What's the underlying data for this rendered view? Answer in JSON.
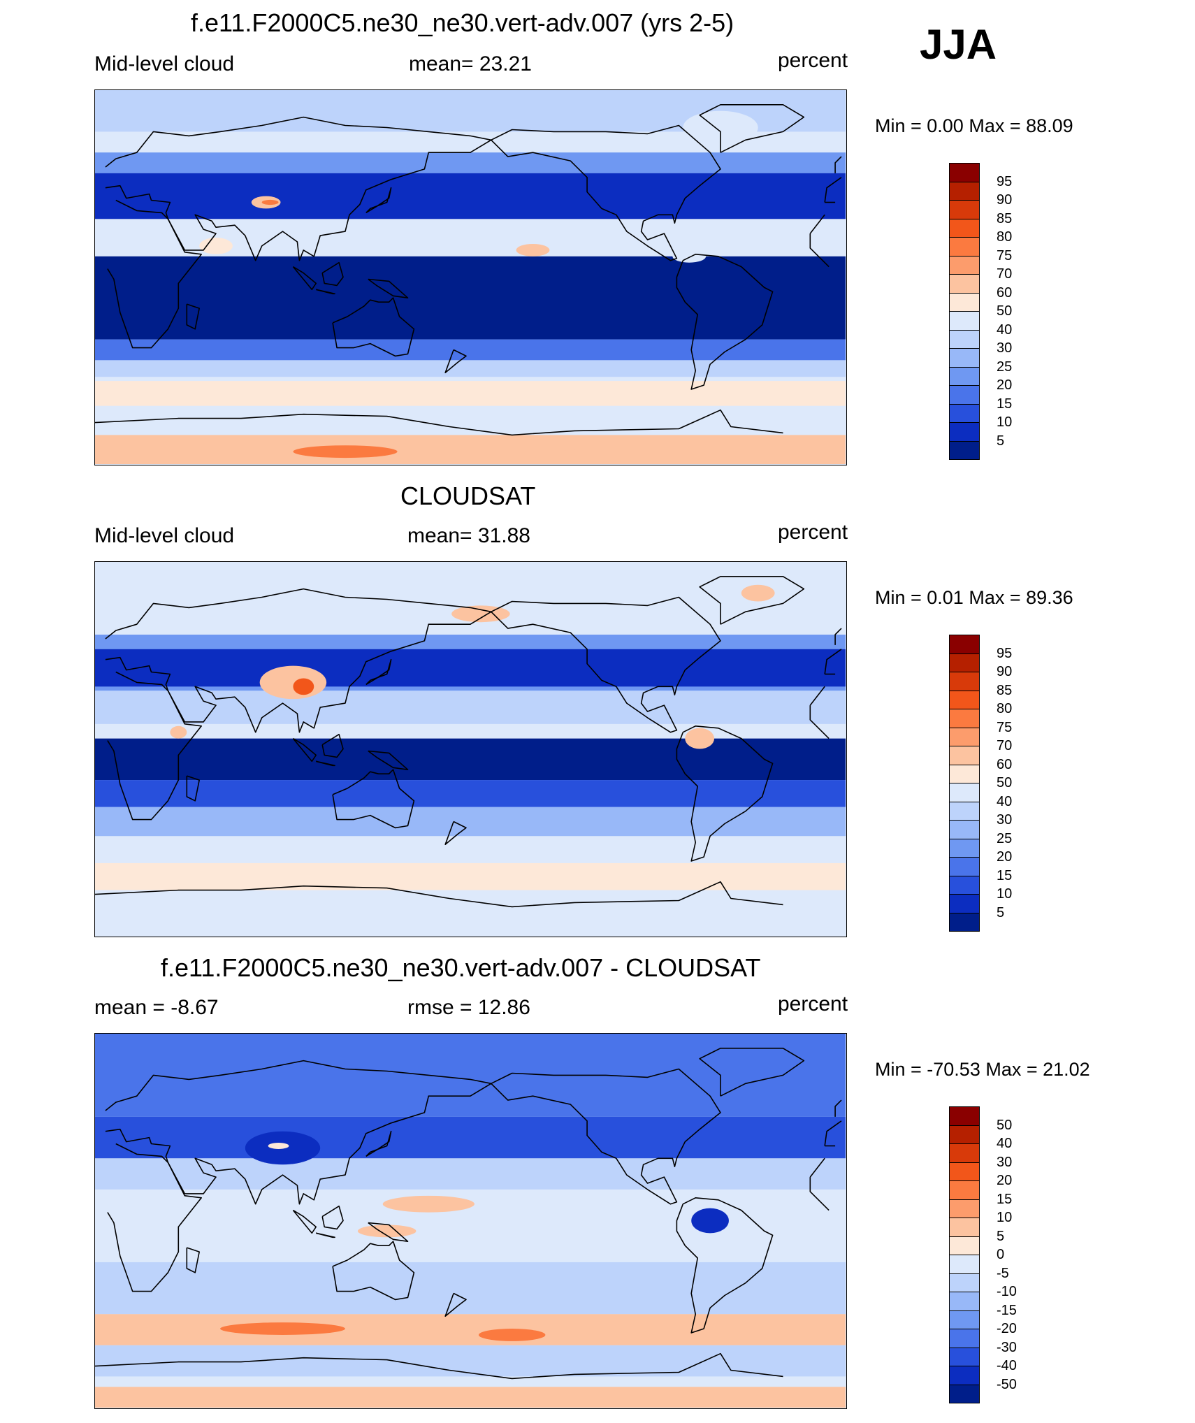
{
  "season": "JJA",
  "panels": [
    {
      "title": "f.e11.F2000C5.ne30_ne30.vert-adv.007 (yrs 2-5)",
      "left": "Mid-level cloud",
      "center": "mean=  23.21",
      "right": "percent",
      "minmax": "Min =   0.00 Max =  88.09",
      "scale": "abs"
    },
    {
      "title": "CLOUDSAT",
      "left": "Mid-level cloud",
      "center": "mean=  31.88",
      "right": "percent",
      "minmax": "Min =   0.01 Max =  89.36",
      "scale": "abs"
    },
    {
      "title": "f.e11.F2000C5.ne30_ne30.vert-adv.007 - CLOUDSAT",
      "left": "mean =  -8.67",
      "center": "rmse =  12.86",
      "right": "percent",
      "minmax": "Min = -70.53 Max =  21.02",
      "scale": "diff"
    }
  ],
  "colorbars": {
    "abs": {
      "labels": [
        "95",
        "90",
        "85",
        "80",
        "75",
        "70",
        "60",
        "50",
        "40",
        "30",
        "25",
        "20",
        "15",
        "10",
        "5"
      ],
      "colors": [
        "#8a0000",
        "#b52000",
        "#d83a0a",
        "#f2561a",
        "#fb7a40",
        "#fc9c6c",
        "#fcc3a0",
        "#fde8d8",
        "#dde9fb",
        "#bdd3fb",
        "#98b8f8",
        "#6f98f2",
        "#4a74ea",
        "#2850dc",
        "#0c2dc0",
        "#001e8a"
      ]
    },
    "diff": {
      "labels": [
        "50",
        "40",
        "30",
        "20",
        "15",
        "10",
        "5",
        "0",
        "-5",
        "-10",
        "-15",
        "-20",
        "-30",
        "-40",
        "-50"
      ],
      "colors": [
        "#8a0000",
        "#b52000",
        "#d83a0a",
        "#f2561a",
        "#fb7a40",
        "#fc9c6c",
        "#fcc3a0",
        "#fde8d8",
        "#dde9fb",
        "#bdd3fb",
        "#98b8f8",
        "#6f98f2",
        "#4a74ea",
        "#2850dc",
        "#0c2dc0",
        "#001e8a"
      ]
    }
  },
  "map_fields": [
    {
      "background": "#dde9fb",
      "bands": [
        {
          "color": "#bdd3fb",
          "lat_top": 90,
          "lat_bottom": 70
        },
        {
          "color": "#6f98f2",
          "lat_top": 60,
          "lat_bottom": 40
        },
        {
          "color": "#0c2dc0",
          "lat_top": 50,
          "lat_bottom": 25
        },
        {
          "color": "#dde9fb",
          "lat_top": 28,
          "lat_bottom": 20
        },
        {
          "color": "#001e8a",
          "lat_top": 10,
          "lat_bottom": -30
        },
        {
          "color": "#4a74ea",
          "lat_top": -30,
          "lat_bottom": -40
        },
        {
          "color": "#bdd3fb",
          "lat_top": -40,
          "lat_bottom": -48
        },
        {
          "color": "#fde8d8",
          "lat_top": -50,
          "lat_bottom": -62
        },
        {
          "color": "#dde9fb",
          "lat_top": -62,
          "lat_bottom": -72
        },
        {
          "color": "#fcc3a0",
          "lat_top": -76,
          "lat_bottom": -90
        }
      ],
      "blobs": [
        {
          "color": "#fcc3a0",
          "lon": 82,
          "lat": 36,
          "rx": 7,
          "ry": 3
        },
        {
          "color": "#fb7a40",
          "lon": 84,
          "lat": 36,
          "rx": 4,
          "ry": 1.2
        },
        {
          "color": "#fde8d8",
          "lon": 58,
          "lat": 15,
          "rx": 8,
          "ry": 4
        },
        {
          "color": "#fcc3a0",
          "lon": 210,
          "lat": 13,
          "rx": 8,
          "ry": 3
        },
        {
          "color": "#dde9fb",
          "lon": 285,
          "lat": 10,
          "rx": 8,
          "ry": 3
        },
        {
          "color": "#dde9fb",
          "lon": 300,
          "lat": 72,
          "rx": 18,
          "ry": 8
        },
        {
          "color": "#fb7a40",
          "lon": 120,
          "lat": -84,
          "rx": 25,
          "ry": 3
        },
        {
          "color": "#fcc3a0",
          "lon": 240,
          "lat": -86,
          "rx": 30,
          "ry": 3
        }
      ]
    },
    {
      "background": "#dde9fb",
      "bands": [
        {
          "color": "#dde9fb",
          "lat_top": 90,
          "lat_bottom": 60
        },
        {
          "color": "#6f98f2",
          "lat_top": 55,
          "lat_bottom": 28
        },
        {
          "color": "#0c2dc0",
          "lat_top": 48,
          "lat_bottom": 30
        },
        {
          "color": "#bdd3fb",
          "lat_top": 28,
          "lat_bottom": 12
        },
        {
          "color": "#001e8a",
          "lat_top": 5,
          "lat_bottom": -15
        },
        {
          "color": "#2850dc",
          "lat_top": -15,
          "lat_bottom": -28
        },
        {
          "color": "#98b8f8",
          "lat_top": -28,
          "lat_bottom": -42
        },
        {
          "color": "#dde9fb",
          "lat_top": -42,
          "lat_bottom": -55
        },
        {
          "color": "#fde8d8",
          "lat_top": -55,
          "lat_bottom": -68
        },
        {
          "color": "#dde9fb",
          "lat_top": -68,
          "lat_bottom": -80
        }
      ],
      "blobs": [
        {
          "color": "#fcc3a0",
          "lon": 95,
          "lat": 32,
          "rx": 16,
          "ry": 8
        },
        {
          "color": "#f2561a",
          "lon": 100,
          "lat": 30,
          "rx": 5,
          "ry": 4
        },
        {
          "color": "#fcc3a0",
          "lon": 185,
          "lat": 65,
          "rx": 14,
          "ry": 4
        },
        {
          "color": "#fcc3a0",
          "lon": 290,
          "lat": 5,
          "rx": 7,
          "ry": 5
        },
        {
          "color": "#fcc3a0",
          "lon": 40,
          "lat": 8,
          "rx": 4,
          "ry": 3
        },
        {
          "color": "#fcc3a0",
          "lon": 318,
          "lat": 75,
          "rx": 8,
          "ry": 4
        }
      ]
    },
    {
      "background": "#dde9fb",
      "bands": [
        {
          "color": "#4a74ea",
          "lat_top": 90,
          "lat_bottom": 50
        },
        {
          "color": "#2850dc",
          "lat_top": 50,
          "lat_bottom": 30
        },
        {
          "color": "#bdd3fb",
          "lat_top": 30,
          "lat_bottom": 15
        },
        {
          "color": "#dde9fb",
          "lat_top": 15,
          "lat_bottom": -20
        },
        {
          "color": "#bdd3fb",
          "lat_top": -20,
          "lat_bottom": -45
        },
        {
          "color": "#fcc3a0",
          "lat_top": -45,
          "lat_bottom": -60
        },
        {
          "color": "#bdd3fb",
          "lat_top": -60,
          "lat_bottom": -75
        },
        {
          "color": "#fcc3a0",
          "lat_top": -80,
          "lat_bottom": -90
        }
      ],
      "blobs": [
        {
          "color": "#0c2dc0",
          "lon": 90,
          "lat": 35,
          "rx": 18,
          "ry": 8
        },
        {
          "color": "#fde8d8",
          "lon": 88,
          "lat": 36,
          "rx": 5,
          "ry": 1.5
        },
        {
          "color": "#fcc3a0",
          "lon": 160,
          "lat": 8,
          "rx": 22,
          "ry": 4
        },
        {
          "color": "#fcc3a0",
          "lon": 140,
          "lat": -5,
          "rx": 14,
          "ry": 3
        },
        {
          "color": "#0c2dc0",
          "lon": 295,
          "lat": 0,
          "rx": 9,
          "ry": 6
        },
        {
          "color": "#fb7a40",
          "lon": 90,
          "lat": -52,
          "rx": 30,
          "ry": 3
        },
        {
          "color": "#fb7a40",
          "lon": 200,
          "lat": -55,
          "rx": 16,
          "ry": 3
        }
      ]
    }
  ]
}
